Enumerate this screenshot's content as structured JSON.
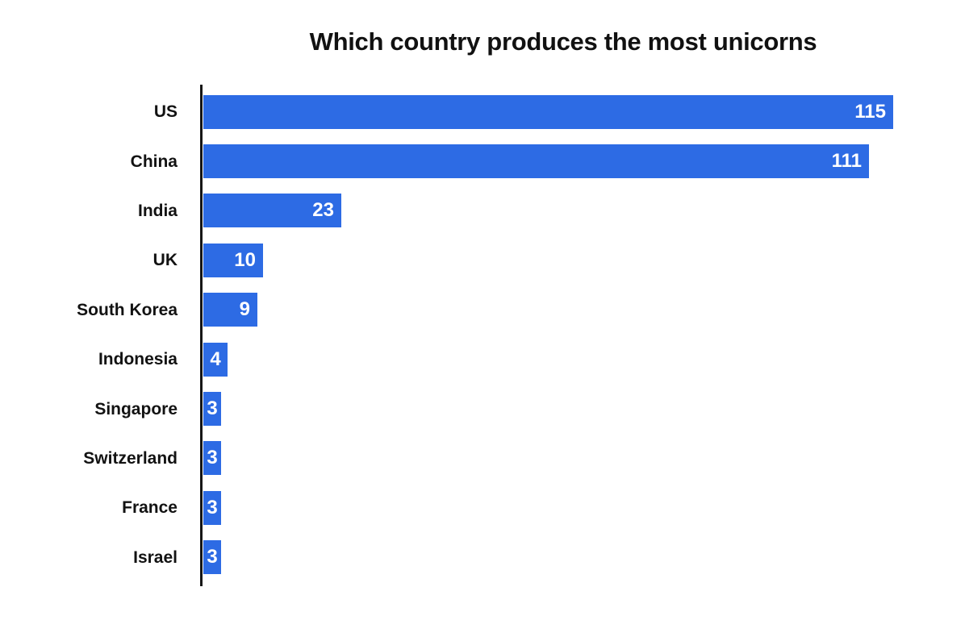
{
  "chart_data": {
    "type": "bar",
    "orientation": "horizontal",
    "title": "Which country produces the most unicorns",
    "categories": [
      "US",
      "China",
      "India",
      "UK",
      "South Korea",
      "Indonesia",
      "Singapore",
      "Switzerland",
      "France",
      "Israel"
    ],
    "values": [
      115,
      111,
      23,
      10,
      9,
      4,
      3,
      3,
      3,
      3
    ],
    "value_labels": [
      "115",
      "111",
      "23",
      "10",
      "9",
      "4",
      "3",
      "3",
      "3",
      "3"
    ],
    "xlim": [
      0,
      115
    ],
    "grid": false,
    "legend": false,
    "value_label_position": "inside-end",
    "bar_color": "#2d6be4",
    "value_label_color": "#ffffff",
    "category_label_color": "#121212",
    "axis_color": "#161616",
    "background_color": "#ffffff"
  }
}
